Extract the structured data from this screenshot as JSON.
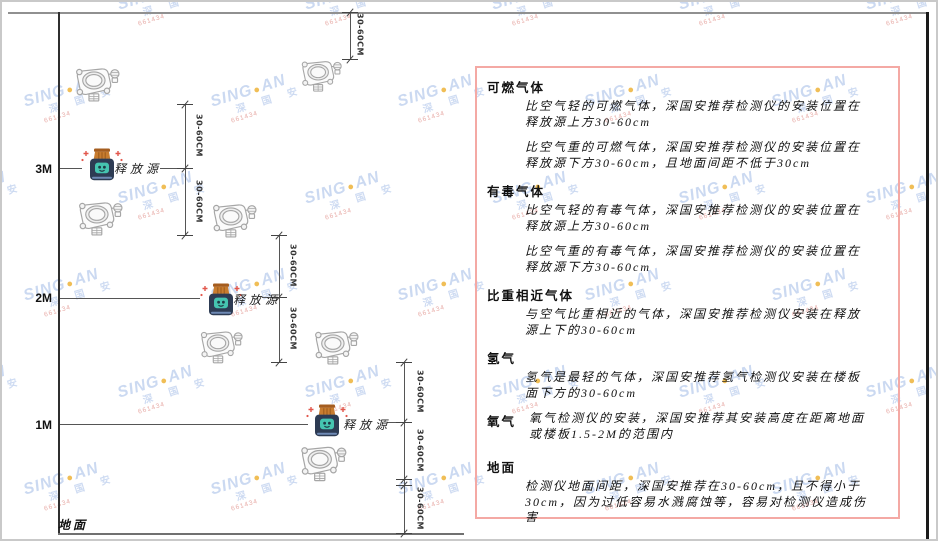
{
  "watermark": {
    "brand_left": "SING",
    "brand_right": "AN",
    "brand_cn": "深 国 安",
    "code": "661434"
  },
  "axis": {
    "heights": [
      "3M",
      "2M",
      "1M"
    ],
    "ground_label": "地面"
  },
  "dimension_label": "30-60CM",
  "release_source_label": "释放源",
  "panel": {
    "border_color": "#f4a9a4",
    "sections": [
      {
        "heading": "可燃气体",
        "paragraphs": [
          "比空气轻的可燃气体，深国安推荐检测仪的安装位置在释放源上方30-60cm",
          "比空气重的可燃气体，深国安推荐检测仪的安装位置在释放源下方30-60cm，且地面间距不低于30cm"
        ]
      },
      {
        "heading": "有毒气体",
        "paragraphs": [
          "比空气轻的有毒气体，深国安推荐检测仪的安装位置在释放源上方30-60cm",
          "比空气重的有毒气体，深国安推荐检测仪的安装位置在释放源下方30-60cm"
        ]
      },
      {
        "heading": "比重相近气体",
        "paragraphs": [
          "与空气比重相近的气体，深国安推荐检测仪安装在释放源上下的30-60cm"
        ]
      },
      {
        "heading": "氢气",
        "paragraphs": [
          "氢气是最轻的气体，深国安推荐氢气检测仪安装在楼板面下方的30-60cm"
        ]
      },
      {
        "heading": "氧气",
        "paragraphs": [
          "氧气检测仪的安装，深国安推荐其安装高度在距离地面或楼板1.5-2M的范围内"
        ]
      },
      {
        "heading": "地面",
        "paragraphs": [
          "检测仪地面间距，深国安推荐在30-60cm，且不得小于30cm，因为过低容易水溅腐蚀等，容易对检测仪造成伤害"
        ]
      }
    ]
  },
  "colors": {
    "panel_border": "#f4a9a4",
    "watermark_blue": "#c9d8f1",
    "watermark_code_red": "#e6a5a0",
    "release_source_body": "#2d3b53",
    "release_source_lid": "#c87c2f",
    "release_source_face": "#45c4b0",
    "detector_line": "#a6a6a6",
    "wall_line": "#2f2f2f"
  }
}
